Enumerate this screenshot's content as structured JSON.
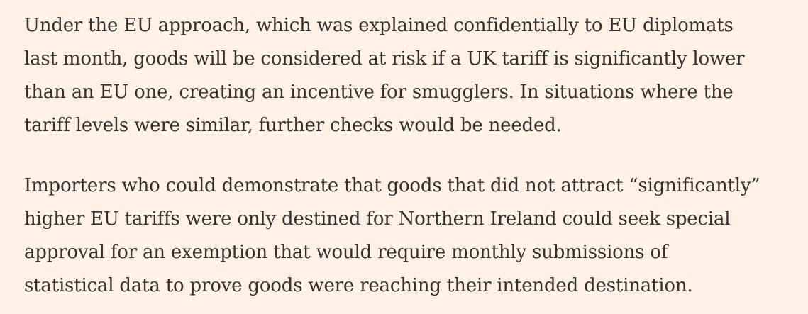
{
  "article": {
    "paragraphs": [
      {
        "lines": [
          "Under the EU approach, which was explained confidentially to EU diplomats",
          "last month, goods will be considered at risk if a UK tariff is significantly lower",
          "than an EU one, creating an incentive for smugglers. In situations where the",
          "tariff levels were similar, further checks would be needed."
        ]
      },
      {
        "lines": [
          "Importers who could demonstrate that goods that did not attract “significantly”",
          "higher EU tariffs were only destined for Northern Ireland could seek special",
          "approval for an exemption that would require monthly submissions of",
          "statistical data to prove goods were reaching their intended destination."
        ]
      }
    ]
  }
}
